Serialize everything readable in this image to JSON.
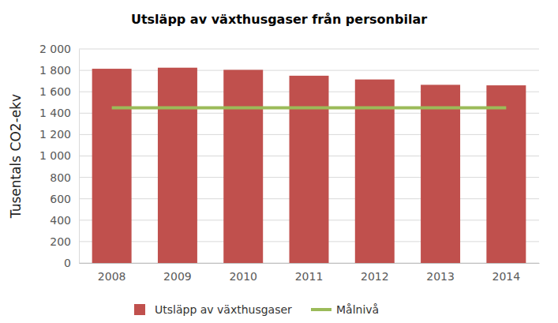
{
  "chart_data": {
    "type": "bar",
    "title": "Utsläpp av växthusgaser från personbilar",
    "y_label": "Tusentals CO2-ekv",
    "categories": [
      "2008",
      "2009",
      "2010",
      "2011",
      "2012",
      "2013",
      "2014"
    ],
    "series": [
      {
        "name": "Utsläpp av växthusgaser",
        "type": "bar",
        "color": "#c0504d",
        "values": [
          1815,
          1825,
          1805,
          1750,
          1715,
          1665,
          1660
        ]
      },
      {
        "name": "Målnivå",
        "type": "line",
        "color": "#9bbb59",
        "values": [
          1450,
          1450,
          1450,
          1450,
          1450,
          1450,
          1450
        ]
      }
    ],
    "ylim": [
      0,
      2000
    ],
    "yticks": [
      0,
      200,
      400,
      600,
      800,
      {
        "value": 1000,
        "label": "1 000"
      },
      {
        "value": 1200,
        "label": "1 200"
      },
      {
        "value": 1400,
        "label": "1 400"
      },
      {
        "value": 1600,
        "label": "1 600"
      },
      {
        "value": 1800,
        "label": "1 800"
      },
      {
        "value": 2000,
        "label": "2 000"
      }
    ],
    "grid": true,
    "legend": "bottom"
  }
}
